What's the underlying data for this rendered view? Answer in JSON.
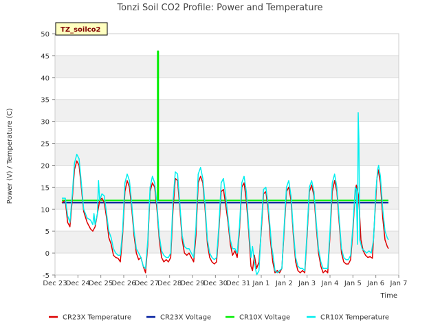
{
  "chart_data": {
    "type": "line",
    "title": "Tonzi Soil CO2 Profile: Power and Temperature",
    "station_label": "TZ_soilco2",
    "xlabel": "Time",
    "ylabel": "Power (V) / Temperature (C)",
    "ylim": [
      -5,
      50
    ],
    "xlim": [
      0,
      15
    ],
    "y_ticks": [
      -5,
      0,
      5,
      10,
      15,
      20,
      25,
      30,
      35,
      40,
      45,
      50
    ],
    "x_ticks": [
      {
        "x": 0,
        "label": "Dec 23"
      },
      {
        "x": 1,
        "label": "Dec 24"
      },
      {
        "x": 2,
        "label": "Dec 25"
      },
      {
        "x": 3,
        "label": "Dec 26"
      },
      {
        "x": 4,
        "label": "Dec 27"
      },
      {
        "x": 5,
        "label": "Dec 28"
      },
      {
        "x": 6,
        "label": "Dec 29"
      },
      {
        "x": 7,
        "label": "Dec 30"
      },
      {
        "x": 8,
        "label": "Dec 31"
      },
      {
        "x": 9,
        "label": "Jan 1"
      },
      {
        "x": 10,
        "label": "Jan 2"
      },
      {
        "x": 11,
        "label": "Jan 3"
      },
      {
        "x": 12,
        "label": "Jan 4"
      },
      {
        "x": 13,
        "label": "Jan 5"
      },
      {
        "x": 14,
        "label": "Jan 6"
      },
      {
        "x": 15,
        "label": "Jan 7"
      }
    ],
    "grid": "horizontal bands",
    "legend_position": "bottom",
    "series": [
      {
        "name": "CR23X Temperature",
        "color": "#dd0000",
        "points": [
          [
            0.3,
            11.5
          ],
          [
            0.45,
            12.0
          ],
          [
            0.55,
            7.0
          ],
          [
            0.65,
            6.0
          ],
          [
            0.75,
            12.0
          ],
          [
            0.85,
            19.0
          ],
          [
            0.95,
            21.0
          ],
          [
            1.05,
            20.0
          ],
          [
            1.15,
            15.0
          ],
          [
            1.25,
            9.5
          ],
          [
            1.4,
            7.0
          ],
          [
            1.55,
            5.5
          ],
          [
            1.65,
            5.0
          ],
          [
            1.75,
            6.0
          ],
          [
            1.85,
            9.0
          ],
          [
            1.95,
            12.0
          ],
          [
            2.05,
            12.5
          ],
          [
            2.15,
            11.5
          ],
          [
            2.25,
            8.0
          ],
          [
            2.35,
            3.5
          ],
          [
            2.45,
            2.0
          ],
          [
            2.55,
            -0.5
          ],
          [
            2.65,
            -1.0
          ],
          [
            2.75,
            -1.2
          ],
          [
            2.85,
            -2.0
          ],
          [
            2.95,
            4.0
          ],
          [
            3.05,
            14.0
          ],
          [
            3.15,
            16.5
          ],
          [
            3.25,
            15.0
          ],
          [
            3.35,
            10.0
          ],
          [
            3.45,
            4.0
          ],
          [
            3.55,
            0.0
          ],
          [
            3.65,
            -1.5
          ],
          [
            3.75,
            -1.0
          ],
          [
            3.85,
            -3.0
          ],
          [
            3.95,
            -4.5
          ],
          [
            4.05,
            2.0
          ],
          [
            4.15,
            14.0
          ],
          [
            4.25,
            16.0
          ],
          [
            4.35,
            15.0
          ],
          [
            4.45,
            10.0
          ],
          [
            4.55,
            3.0
          ],
          [
            4.65,
            -1.0
          ],
          [
            4.75,
            -2.0
          ],
          [
            4.85,
            -1.5
          ],
          [
            4.95,
            -2.0
          ],
          [
            5.05,
            -1.0
          ],
          [
            5.15,
            10.0
          ],
          [
            5.25,
            17.0
          ],
          [
            5.35,
            16.5
          ],
          [
            5.45,
            10.0
          ],
          [
            5.55,
            3.0
          ],
          [
            5.65,
            0.0
          ],
          [
            5.75,
            -0.5
          ],
          [
            5.85,
            0.0
          ],
          [
            5.95,
            -1.0
          ],
          [
            6.05,
            -2.0
          ],
          [
            6.15,
            4.0
          ],
          [
            6.25,
            16.0
          ],
          [
            6.35,
            17.5
          ],
          [
            6.45,
            16.0
          ],
          [
            6.55,
            10.0
          ],
          [
            6.65,
            2.0
          ],
          [
            6.75,
            -1.0
          ],
          [
            6.85,
            -2.0
          ],
          [
            6.95,
            -2.5
          ],
          [
            7.05,
            -2.0
          ],
          [
            7.15,
            5.0
          ],
          [
            7.25,
            14.0
          ],
          [
            7.35,
            14.5
          ],
          [
            7.45,
            11.0
          ],
          [
            7.55,
            7.0
          ],
          [
            7.65,
            2.0
          ],
          [
            7.75,
            -0.5
          ],
          [
            7.85,
            0.5
          ],
          [
            7.95,
            -1.0
          ],
          [
            8.05,
            5.0
          ],
          [
            8.15,
            15.0
          ],
          [
            8.25,
            16.0
          ],
          [
            8.35,
            12.0
          ],
          [
            8.45,
            5.0
          ],
          [
            8.55,
            -3.0
          ],
          [
            8.62,
            -4.0
          ],
          [
            8.7,
            -0.5
          ],
          [
            8.8,
            -3.5
          ],
          [
            8.9,
            -2.0
          ],
          [
            9.0,
            5.0
          ],
          [
            9.1,
            13.5
          ],
          [
            9.2,
            14.0
          ],
          [
            9.3,
            10.0
          ],
          [
            9.4,
            3.0
          ],
          [
            9.5,
            -2.0
          ],
          [
            9.6,
            -4.5
          ],
          [
            9.7,
            -4.0
          ],
          [
            9.8,
            -4.5
          ],
          [
            9.9,
            -3.5
          ],
          [
            10.0,
            5.0
          ],
          [
            10.1,
            14.0
          ],
          [
            10.2,
            15.0
          ],
          [
            10.3,
            12.0
          ],
          [
            10.4,
            4.0
          ],
          [
            10.5,
            -2.0
          ],
          [
            10.6,
            -4.0
          ],
          [
            10.7,
            -4.5
          ],
          [
            10.8,
            -4.0
          ],
          [
            10.9,
            -4.5
          ],
          [
            11.0,
            4.0
          ],
          [
            11.1,
            14.0
          ],
          [
            11.2,
            15.5
          ],
          [
            11.3,
            13.0
          ],
          [
            11.4,
            6.0
          ],
          [
            11.5,
            0.0
          ],
          [
            11.6,
            -3.0
          ],
          [
            11.7,
            -4.5
          ],
          [
            11.8,
            -4.0
          ],
          [
            11.9,
            -4.5
          ],
          [
            12.0,
            4.0
          ],
          [
            12.1,
            14.0
          ],
          [
            12.2,
            16.5
          ],
          [
            12.3,
            14.0
          ],
          [
            12.4,
            7.0
          ],
          [
            12.5,
            0.0
          ],
          [
            12.6,
            -2.0
          ],
          [
            12.7,
            -2.5
          ],
          [
            12.8,
            -2.5
          ],
          [
            12.9,
            -1.5
          ],
          [
            13.0,
            5.0
          ],
          [
            13.1,
            14.0
          ],
          [
            13.15,
            15.5
          ],
          [
            13.25,
            13.0
          ],
          [
            13.35,
            3.0
          ],
          [
            13.45,
            0.5
          ],
          [
            13.55,
            -0.5
          ],
          [
            13.65,
            -1.0
          ],
          [
            13.75,
            -0.8
          ],
          [
            13.85,
            -1.2
          ],
          [
            13.95,
            8.0
          ],
          [
            14.05,
            17.0
          ],
          [
            14.1,
            19.0
          ],
          [
            14.2,
            16.0
          ],
          [
            14.3,
            8.0
          ],
          [
            14.4,
            3.0
          ],
          [
            14.5,
            1.5
          ],
          [
            14.55,
            1.0
          ]
        ]
      },
      {
        "name": "CR23X Voltage",
        "color": "#001d9e",
        "points": [
          [
            0.3,
            11.5
          ],
          [
            14.55,
            11.5
          ]
        ]
      },
      {
        "name": "CR10X Voltage",
        "color": "#00ee00",
        "points": [
          [
            0.3,
            12.0
          ],
          [
            4.45,
            12.0
          ],
          [
            4.48,
            12.0
          ],
          [
            4.48,
            46.0
          ],
          [
            4.51,
            46.0
          ],
          [
            4.51,
            12.0
          ],
          [
            14.55,
            12.0
          ]
        ]
      },
      {
        "name": "CR10X Temperature",
        "color": "#00eeee",
        "points": [
          [
            0.3,
            12.5
          ],
          [
            0.45,
            12.5
          ],
          [
            0.55,
            8.5
          ],
          [
            0.65,
            7.0
          ],
          [
            0.75,
            13.0
          ],
          [
            0.85,
            20.5
          ],
          [
            0.95,
            22.5
          ],
          [
            1.05,
            21.5
          ],
          [
            1.15,
            16.0
          ],
          [
            1.25,
            10.0
          ],
          [
            1.4,
            8.0
          ],
          [
            1.55,
            7.5
          ],
          [
            1.65,
            6.5
          ],
          [
            1.7,
            9.0
          ],
          [
            1.75,
            6.5
          ],
          [
            1.85,
            9.0
          ],
          [
            1.9,
            16.5
          ],
          [
            1.95,
            12.0
          ],
          [
            2.05,
            13.5
          ],
          [
            2.15,
            13.0
          ],
          [
            2.25,
            9.0
          ],
          [
            2.35,
            5.0
          ],
          [
            2.45,
            3.5
          ],
          [
            2.55,
            1.0
          ],
          [
            2.65,
            0.0
          ],
          [
            2.75,
            -0.5
          ],
          [
            2.85,
            -0.5
          ],
          [
            2.95,
            5.0
          ],
          [
            3.05,
            16.0
          ],
          [
            3.15,
            18.0
          ],
          [
            3.25,
            16.5
          ],
          [
            3.35,
            11.0
          ],
          [
            3.45,
            5.0
          ],
          [
            3.55,
            1.0
          ],
          [
            3.65,
            0.0
          ],
          [
            3.75,
            -1.0
          ],
          [
            3.85,
            -3.0
          ],
          [
            3.95,
            -3.5
          ],
          [
            4.05,
            3.0
          ],
          [
            4.15,
            15.0
          ],
          [
            4.25,
            17.5
          ],
          [
            4.35,
            16.0
          ],
          [
            4.45,
            11.0
          ],
          [
            4.55,
            4.0
          ],
          [
            4.65,
            0.5
          ],
          [
            4.75,
            -0.5
          ],
          [
            4.85,
            -1.0
          ],
          [
            4.95,
            -1.0
          ],
          [
            5.05,
            0.0
          ],
          [
            5.15,
            12.0
          ],
          [
            5.25,
            18.5
          ],
          [
            5.35,
            18.0
          ],
          [
            5.45,
            11.0
          ],
          [
            5.55,
            4.0
          ],
          [
            5.65,
            1.5
          ],
          [
            5.75,
            1.0
          ],
          [
            5.85,
            1.0
          ],
          [
            5.95,
            0.0
          ],
          [
            6.05,
            -1.0
          ],
          [
            6.15,
            6.0
          ],
          [
            6.25,
            18.0
          ],
          [
            6.35,
            19.5
          ],
          [
            6.45,
            17.0
          ],
          [
            6.55,
            11.0
          ],
          [
            6.65,
            3.0
          ],
          [
            6.75,
            0.0
          ],
          [
            6.85,
            -1.0
          ],
          [
            6.95,
            -1.5
          ],
          [
            7.05,
            -1.0
          ],
          [
            7.15,
            6.0
          ],
          [
            7.25,
            16.0
          ],
          [
            7.35,
            17.0
          ],
          [
            7.45,
            13.0
          ],
          [
            7.55,
            8.0
          ],
          [
            7.65,
            3.0
          ],
          [
            7.75,
            1.0
          ],
          [
            7.85,
            1.0
          ],
          [
            7.95,
            0.0
          ],
          [
            8.05,
            6.0
          ],
          [
            8.15,
            16.0
          ],
          [
            8.25,
            17.5
          ],
          [
            8.35,
            14.0
          ],
          [
            8.45,
            6.0
          ],
          [
            8.55,
            -1.0
          ],
          [
            8.62,
            1.5
          ],
          [
            8.7,
            -2.0
          ],
          [
            8.8,
            -5.0
          ],
          [
            8.9,
            -4.0
          ],
          [
            9.0,
            6.0
          ],
          [
            9.1,
            14.5
          ],
          [
            9.2,
            15.0
          ],
          [
            9.3,
            11.0
          ],
          [
            9.4,
            5.0
          ],
          [
            9.45,
            1.5
          ],
          [
            9.5,
            0.0
          ],
          [
            9.6,
            -4.0
          ],
          [
            9.7,
            -4.5
          ],
          [
            9.8,
            -4.0
          ],
          [
            9.9,
            -3.5
          ],
          [
            10.0,
            6.0
          ],
          [
            10.1,
            15.0
          ],
          [
            10.2,
            16.5
          ],
          [
            10.3,
            13.0
          ],
          [
            10.4,
            5.0
          ],
          [
            10.5,
            -1.0
          ],
          [
            10.6,
            -3.0
          ],
          [
            10.7,
            -3.5
          ],
          [
            10.8,
            -3.5
          ],
          [
            10.9,
            -4.0
          ],
          [
            11.0,
            5.0
          ],
          [
            11.1,
            15.0
          ],
          [
            11.2,
            16.5
          ],
          [
            11.3,
            14.0
          ],
          [
            11.4,
            7.0
          ],
          [
            11.5,
            1.0
          ],
          [
            11.6,
            -2.0
          ],
          [
            11.7,
            -3.5
          ],
          [
            11.8,
            -3.5
          ],
          [
            11.9,
            -3.5
          ],
          [
            12.0,
            5.0
          ],
          [
            12.1,
            16.0
          ],
          [
            12.2,
            18.0
          ],
          [
            12.3,
            15.0
          ],
          [
            12.4,
            8.0
          ],
          [
            12.5,
            1.0
          ],
          [
            12.6,
            -1.0
          ],
          [
            12.7,
            -1.5
          ],
          [
            12.8,
            -1.5
          ],
          [
            12.9,
            -0.5
          ],
          [
            13.0,
            6.0
          ],
          [
            13.1,
            15.0
          ],
          [
            13.15,
            14.5
          ],
          [
            13.2,
            2.0
          ],
          [
            13.23,
            32.0
          ],
          [
            13.26,
            26.0
          ],
          [
            13.3,
            3.0
          ],
          [
            13.4,
            1.0
          ],
          [
            13.5,
            0.5
          ],
          [
            13.6,
            0.0
          ],
          [
            13.7,
            0.5
          ],
          [
            13.8,
            0.0
          ],
          [
            13.9,
            3.0
          ],
          [
            14.0,
            14.0
          ],
          [
            14.08,
            19.0
          ],
          [
            14.12,
            20.0
          ],
          [
            14.2,
            17.5
          ],
          [
            14.3,
            10.0
          ],
          [
            14.4,
            5.0
          ],
          [
            14.5,
            3.5
          ],
          [
            14.55,
            3.0
          ]
        ]
      }
    ]
  }
}
